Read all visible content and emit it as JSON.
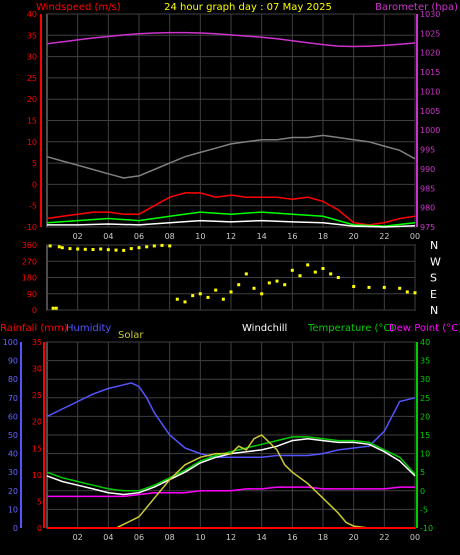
{
  "header": {
    "left_title": "Windspeed (m/s)",
    "center_title": "24 hour graph day : 07 May 2025",
    "right_title": "Barometer (hpa)"
  },
  "colors": {
    "background": "#000000",
    "grid": "#404040",
    "wind": "#ff0000",
    "gust": "#808080",
    "barometer": "#cc33cc",
    "direction": "#ffff00",
    "humidity": "#5555ff",
    "temperature": "#00cc00",
    "dewpoint": "#ff00ff",
    "windchill": "#ffffff",
    "solar": "#cccc33",
    "rainfall": "#ff0000"
  },
  "chart_data": [
    {
      "type": "line",
      "title": "24 hour graph day : 07 May 2025",
      "ylabel_left": "Windspeed (m/s)",
      "ylabel_right": "Barometer (hpa)",
      "xticks": [
        "02",
        "04",
        "06",
        "08",
        "10",
        "12",
        "14",
        "16",
        "18",
        "20",
        "22",
        "00"
      ],
      "x_range_hours": [
        0,
        24
      ],
      "ylim_left": [
        -10,
        40
      ],
      "yticks_left": [
        40,
        35,
        30,
        25,
        20,
        15,
        10,
        5,
        0,
        -5,
        -10
      ],
      "ylim_right": [
        975,
        1030
      ],
      "yticks_right": [
        1030,
        1025,
        1020,
        1015,
        1010,
        1005,
        1000,
        995,
        990,
        985,
        980,
        975
      ],
      "grid": true,
      "series": [
        {
          "name": "Barometer",
          "axis": "right",
          "color": "#cc33cc",
          "x": [
            0,
            1,
            2,
            3,
            4,
            5,
            6,
            7,
            8,
            9,
            10,
            11,
            12,
            13,
            14,
            15,
            16,
            17,
            18,
            19,
            20,
            21,
            22,
            23,
            24
          ],
          "y": [
            1022.3,
            1022.8,
            1023.3,
            1023.8,
            1024.2,
            1024.6,
            1024.9,
            1025.1,
            1025.2,
            1025.2,
            1025.1,
            1024.9,
            1024.6,
            1024.3,
            1024.0,
            1023.6,
            1023.1,
            1022.6,
            1022.1,
            1021.7,
            1021.6,
            1021.7,
            1021.9,
            1022.2,
            1022.5
          ]
        },
        {
          "name": "Gust",
          "axis": "left",
          "color": "#808080",
          "x": [
            0,
            1,
            2,
            3,
            4,
            5,
            6,
            7,
            8,
            9,
            10,
            11,
            12,
            13,
            14,
            15,
            16,
            17,
            18,
            19,
            20,
            21,
            22,
            23,
            24
          ],
          "y": [
            6.5,
            5.5,
            4.5,
            3.5,
            2.5,
            1.5,
            2,
            3.5,
            5,
            6.5,
            7.5,
            8.5,
            9.5,
            10,
            10.5,
            10.5,
            11,
            11,
            11.5,
            11,
            10.5,
            10,
            9,
            8,
            6
          ]
        },
        {
          "name": "Windspeed",
          "axis": "left",
          "color": "#ff0000",
          "x": [
            0,
            1,
            2,
            3,
            4,
            5,
            6,
            7,
            8,
            9,
            10,
            11,
            12,
            13,
            14,
            15,
            16,
            17,
            18,
            19,
            20,
            21,
            22,
            23,
            24
          ],
          "y": [
            -8,
            -7.5,
            -7,
            -6.5,
            -6.5,
            -7,
            -7,
            -5,
            -3,
            -2,
            -2,
            -3,
            -2.5,
            -3,
            -3,
            -3,
            -3.5,
            -3,
            -4,
            -6,
            -9,
            -9.5,
            -9,
            -8,
            -7.5
          ]
        },
        {
          "name": "Wind (avg)",
          "axis": "left",
          "color": "#00ff00",
          "x": [
            0,
            2,
            4,
            6,
            8,
            10,
            12,
            14,
            16,
            18,
            20,
            22,
            24
          ],
          "y": [
            -9,
            -8.5,
            -8,
            -8.5,
            -7.5,
            -6.5,
            -7,
            -6.5,
            -7,
            -7.5,
            -9.5,
            -9.8,
            -9
          ]
        },
        {
          "name": "Wind (min)",
          "axis": "left",
          "color": "#ffffff",
          "x": [
            0,
            2,
            4,
            6,
            8,
            10,
            12,
            14,
            16,
            18,
            20,
            22,
            24
          ],
          "y": [
            -9.5,
            -9.5,
            -9.3,
            -9.5,
            -9,
            -8.5,
            -8.8,
            -8.5,
            -8.8,
            -9,
            -9.8,
            -10,
            -9.7
          ]
        }
      ]
    },
    {
      "type": "scatter",
      "title": "",
      "ylabel_left": "",
      "ylabel_right": "",
      "xticks": [
        "02",
        "04",
        "06",
        "08",
        "10",
        "12",
        "14",
        "16",
        "18",
        "20",
        "22",
        "00"
      ],
      "x_range_hours": [
        0,
        24
      ],
      "ylim_left": [
        0,
        360
      ],
      "yticks_left": [
        360,
        270,
        180,
        90,
        0
      ],
      "yticks_right": [
        "N",
        "W",
        "S",
        "E",
        "N"
      ],
      "grid": true,
      "series": [
        {
          "name": "Wind direction",
          "color": "#ffff00",
          "x": [
            0.2,
            0.4,
            0.6,
            0.8,
            1,
            1.5,
            2,
            2.5,
            3,
            3.5,
            4,
            4.5,
            5,
            5.5,
            6,
            6.5,
            7,
            7.5,
            8,
            8.5,
            9,
            9.5,
            10,
            10.5,
            11,
            11.5,
            12,
            12.5,
            13,
            13.5,
            14,
            14.5,
            15,
            15.5,
            16,
            16.5,
            17,
            17.5,
            18,
            18.5,
            19,
            20,
            21,
            22,
            23,
            23.5,
            24
          ],
          "y": [
            355,
            10,
            10,
            350,
            345,
            340,
            338,
            336,
            335,
            338,
            334,
            332,
            330,
            340,
            345,
            350,
            355,
            358,
            355,
            60,
            45,
            80,
            90,
            70,
            110,
            60,
            100,
            140,
            200,
            120,
            90,
            150,
            160,
            140,
            220,
            190,
            250,
            210,
            230,
            200,
            180,
            130,
            125,
            125,
            120,
            100,
            95
          ]
        }
      ]
    },
    {
      "type": "line",
      "title": "",
      "ylabels": [
        "Rainfall (mm)",
        "Humidity",
        "Solar",
        "Windchill",
        "Temperature (°C)",
        "Dew Point (°C)"
      ],
      "xticks": [
        "02",
        "04",
        "06",
        "08",
        "10",
        "12",
        "14",
        "16",
        "18",
        "20",
        "22",
        "00"
      ],
      "x_range_hours": [
        0,
        24
      ],
      "ylim_humidity": [
        0,
        100
      ],
      "yticks_humidity": [
        100,
        90,
        80,
        70,
        60,
        50,
        40,
        30,
        20,
        10,
        0
      ],
      "ylim_rain": [
        0,
        35
      ],
      "yticks_rain": [
        35,
        30,
        25,
        20,
        15,
        10,
        5,
        0
      ],
      "ylim_temp": [
        -10,
        40
      ],
      "yticks_temp": [
        40,
        35,
        30,
        25,
        20,
        15,
        10,
        5,
        0,
        -5,
        -10
      ],
      "grid": true,
      "series": [
        {
          "name": "Humidity",
          "axis": "humidity",
          "color": "#5555ff",
          "x": [
            0,
            1,
            2,
            3,
            4,
            5,
            5.5,
            6,
            6.5,
            7,
            8,
            9,
            10,
            11,
            12,
            13,
            14,
            15,
            16,
            17,
            18,
            19,
            20,
            21,
            22,
            23,
            24
          ],
          "y": [
            60,
            64,
            68,
            72,
            75,
            77,
            78,
            76,
            70,
            62,
            50,
            43,
            40,
            38,
            38,
            38,
            38,
            39,
            39,
            39,
            40,
            42,
            43,
            44,
            52,
            68,
            70
          ]
        },
        {
          "name": "Temperature",
          "axis": "temp",
          "color": "#00cc00",
          "x": [
            0,
            1,
            2,
            3,
            4,
            5,
            6,
            7,
            8,
            9,
            10,
            11,
            12,
            13,
            14,
            15,
            16,
            17,
            18,
            19,
            20,
            21,
            22,
            23,
            24
          ],
          "y": [
            5,
            3.5,
            2.5,
            1.5,
            0.5,
            0,
            0,
            1.5,
            3.5,
            5.5,
            8,
            9.5,
            10.5,
            11.5,
            12.5,
            13.5,
            14.5,
            14.5,
            14,
            13.5,
            13.5,
            13,
            11,
            9,
            4.5
          ]
        },
        {
          "name": "Dew Point",
          "axis": "temp",
          "color": "#ff00ff",
          "x": [
            0,
            1,
            2,
            3,
            4,
            5,
            6,
            7,
            8,
            9,
            10,
            11,
            12,
            13,
            14,
            15,
            16,
            17,
            18,
            19,
            20,
            21,
            22,
            23,
            24
          ],
          "y": [
            -1.5,
            -1.5,
            -1.5,
            -1.5,
            -1.5,
            -1.5,
            -1,
            -0.5,
            -0.5,
            -0.5,
            0,
            0,
            0,
            0.5,
            0.5,
            1,
            1,
            1,
            0.5,
            0.5,
            0.5,
            0.5,
            0.5,
            1,
            1
          ]
        },
        {
          "name": "Windchill",
          "axis": "temp",
          "color": "#ffffff",
          "x": [
            0,
            1,
            2,
            3,
            4,
            5,
            6,
            7,
            8,
            9,
            10,
            11,
            12,
            13,
            14,
            15,
            16,
            17,
            18,
            19,
            20,
            21,
            22,
            23,
            24
          ],
          "y": [
            4,
            2.5,
            1.5,
            0.5,
            -0.5,
            -1,
            -0.5,
            1,
            3,
            5,
            7.5,
            9,
            10,
            10.5,
            11,
            12,
            13.5,
            14,
            13.5,
            13,
            13,
            12.5,
            10.5,
            8,
            4
          ]
        },
        {
          "name": "Solar",
          "axis": "temp",
          "color": "#cccc33",
          "x": [
            0,
            4.5,
            5,
            6,
            7,
            8,
            9,
            10,
            11,
            12,
            12.5,
            13,
            13.5,
            14,
            14.5,
            15,
            15.5,
            16,
            17,
            18,
            19,
            19.5,
            20,
            21,
            22,
            23,
            24
          ],
          "y": [
            -10,
            -10,
            -9,
            -7,
            -2,
            3,
            7,
            9,
            10,
            10,
            12,
            11,
            14,
            15,
            13,
            11,
            7,
            5,
            2,
            -2,
            -6,
            -8.5,
            -9.5,
            -10,
            -10,
            -10,
            -10
          ]
        },
        {
          "name": "Rainfall",
          "axis": "rain",
          "color": "#ff0000",
          "x": [
            0,
            24
          ],
          "y": [
            0,
            0
          ]
        }
      ]
    }
  ]
}
